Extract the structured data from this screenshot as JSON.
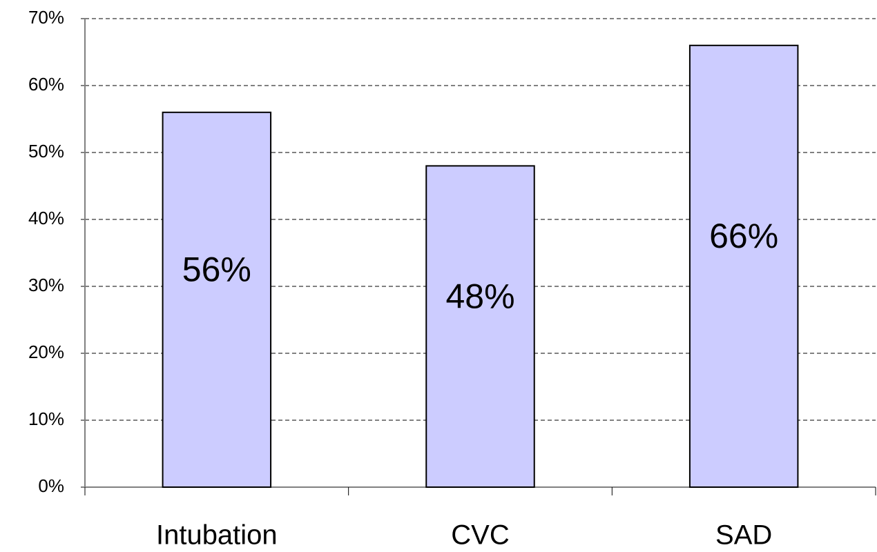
{
  "chart_data": {
    "type": "bar",
    "categories": [
      "Intubation",
      "CVC",
      "SAD"
    ],
    "values": [
      56,
      48,
      66
    ],
    "value_labels": [
      "56%",
      "48%",
      "66%"
    ],
    "color": "#ccccff",
    "ylim": [
      0,
      70
    ],
    "yticks": [
      {
        "value": 0,
        "label": "0%"
      },
      {
        "value": 10,
        "label": "10%"
      },
      {
        "value": 20,
        "label": "20%"
      },
      {
        "value": 30,
        "label": "30%"
      },
      {
        "value": 40,
        "label": "40%"
      },
      {
        "value": 50,
        "label": "50%"
      },
      {
        "value": 60,
        "label": "60%"
      },
      {
        "value": 70,
        "label": "70%"
      }
    ],
    "grid": true
  }
}
